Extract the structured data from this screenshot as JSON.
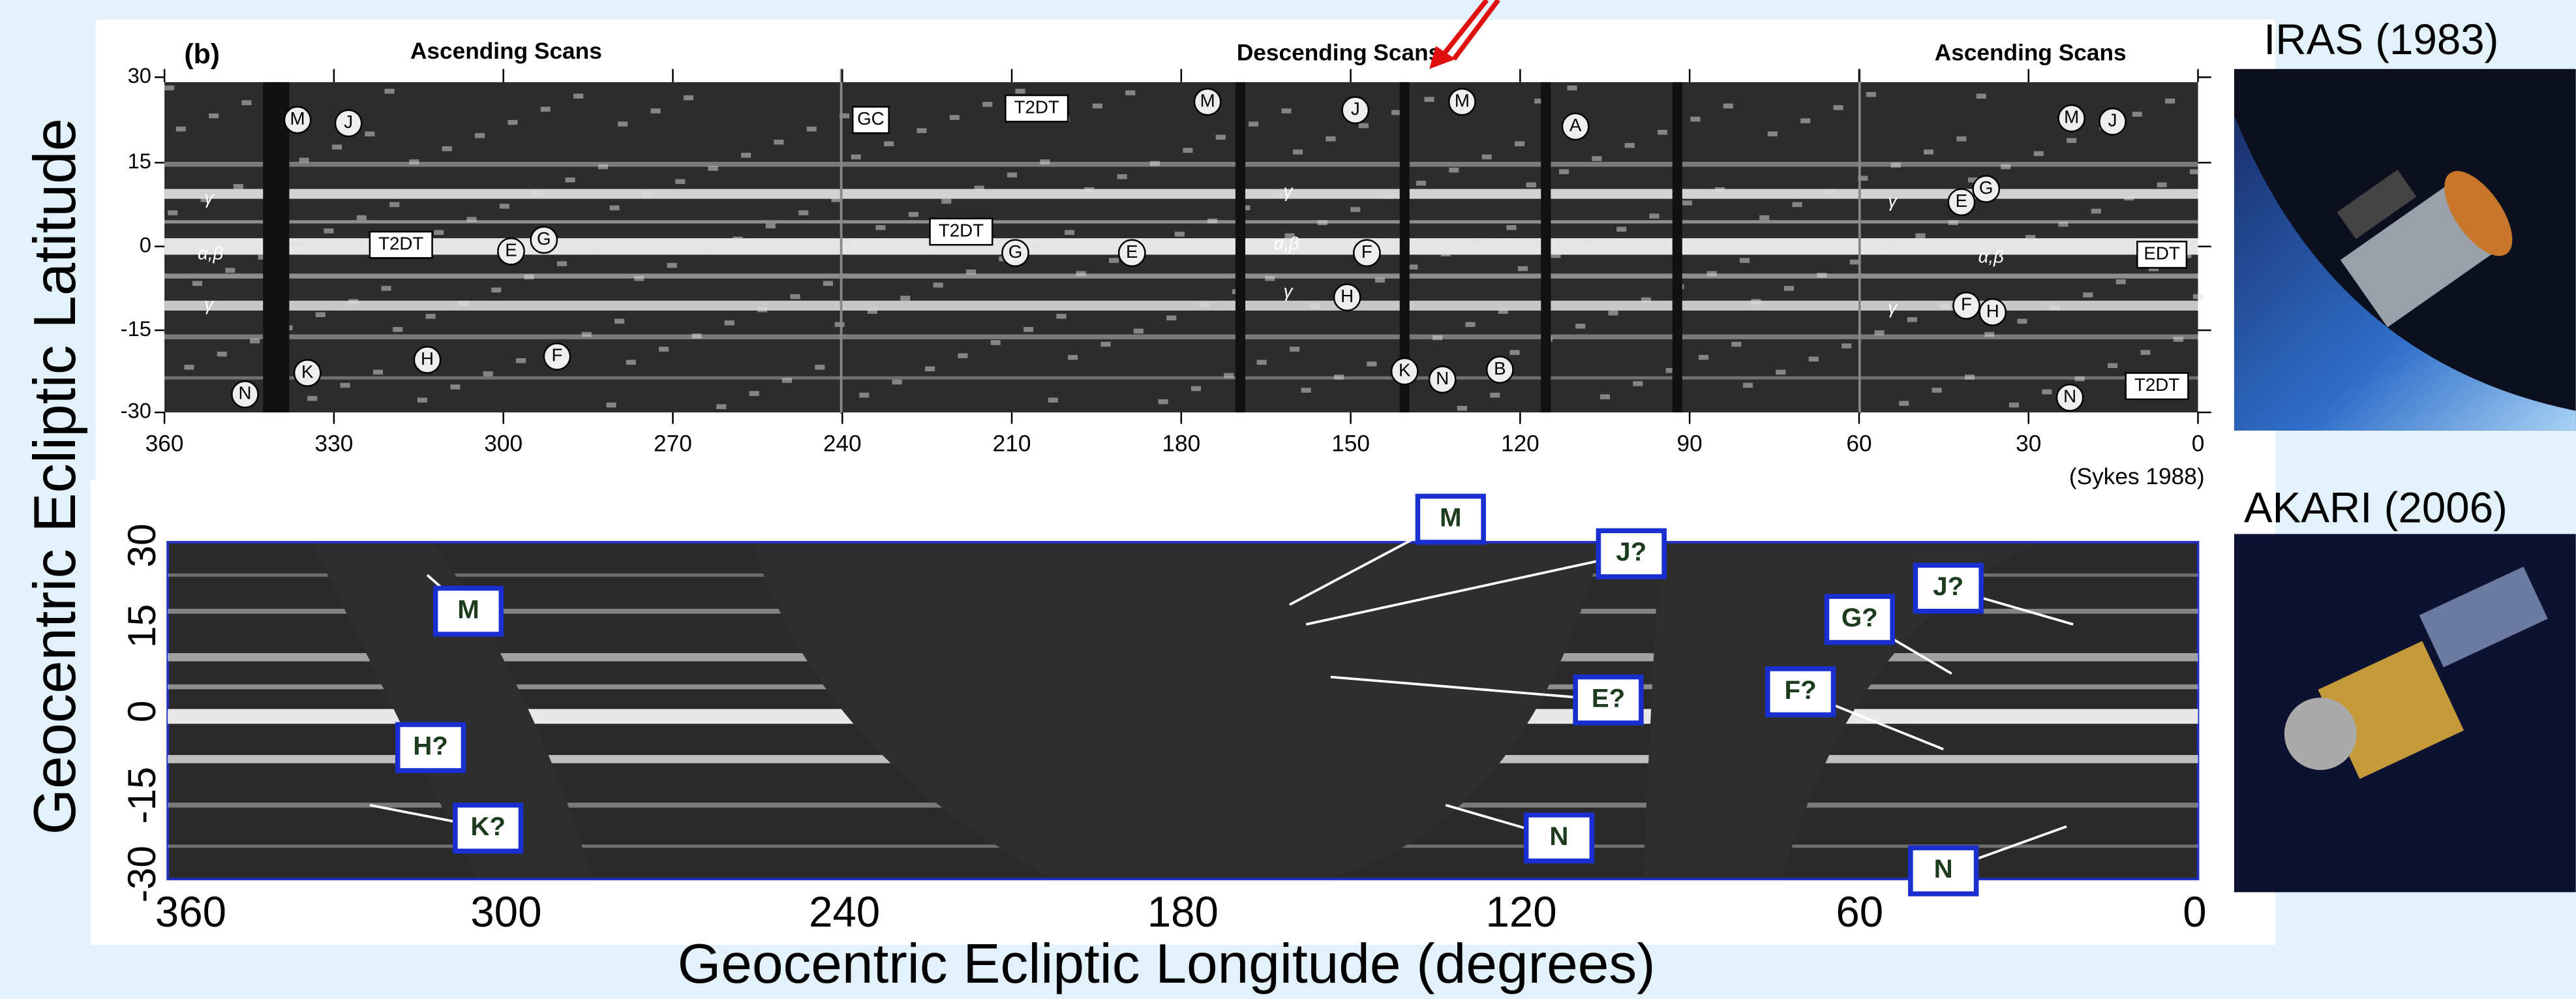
{
  "y_axis_label": "Geocentric Ecliptic Latitude",
  "x_axis_label": "Geocentric Ecliptic Longitude  (degrees)",
  "iras": {
    "panel_label": "(b)",
    "scan_labels": [
      "Ascending Scans",
      "Descending Scans",
      "Ascending Scans"
    ],
    "yticks": [
      "30",
      "15",
      "0",
      "-15",
      "-30"
    ],
    "xticks": [
      "360",
      "330",
      "300",
      "270",
      "240",
      "210",
      "180",
      "150",
      "120",
      "90",
      "60",
      "30",
      "0"
    ],
    "credit": "(Sykes 1988)",
    "features": [
      "M",
      "J",
      "γ",
      "α,β",
      "γ",
      "T2DT",
      "E",
      "G",
      "H",
      "F",
      "K",
      "N",
      "GC",
      "T2DT",
      "T2DT",
      "G",
      "E",
      "M",
      "J",
      "M",
      "A",
      "γ",
      "α,β",
      "F",
      "γ",
      "H",
      "K",
      "N",
      "B",
      "γ",
      "E",
      "G",
      "α,β",
      "EDT",
      "γ",
      "F",
      "H",
      "M",
      "J",
      "N",
      "T2DT"
    ]
  },
  "akari": {
    "yticks": [
      "30",
      "15",
      "0",
      "-15",
      "-30"
    ],
    "xticks": [
      "360",
      "300",
      "240",
      "180",
      "120",
      "60",
      "0"
    ],
    "features": [
      "M",
      "H?",
      "K?",
      "M",
      "J?",
      "E?",
      "N",
      "J?",
      "G?",
      "F?",
      "N"
    ]
  },
  "satellites": [
    "IRAS (1983)",
    "AKARI (2006)"
  ]
}
